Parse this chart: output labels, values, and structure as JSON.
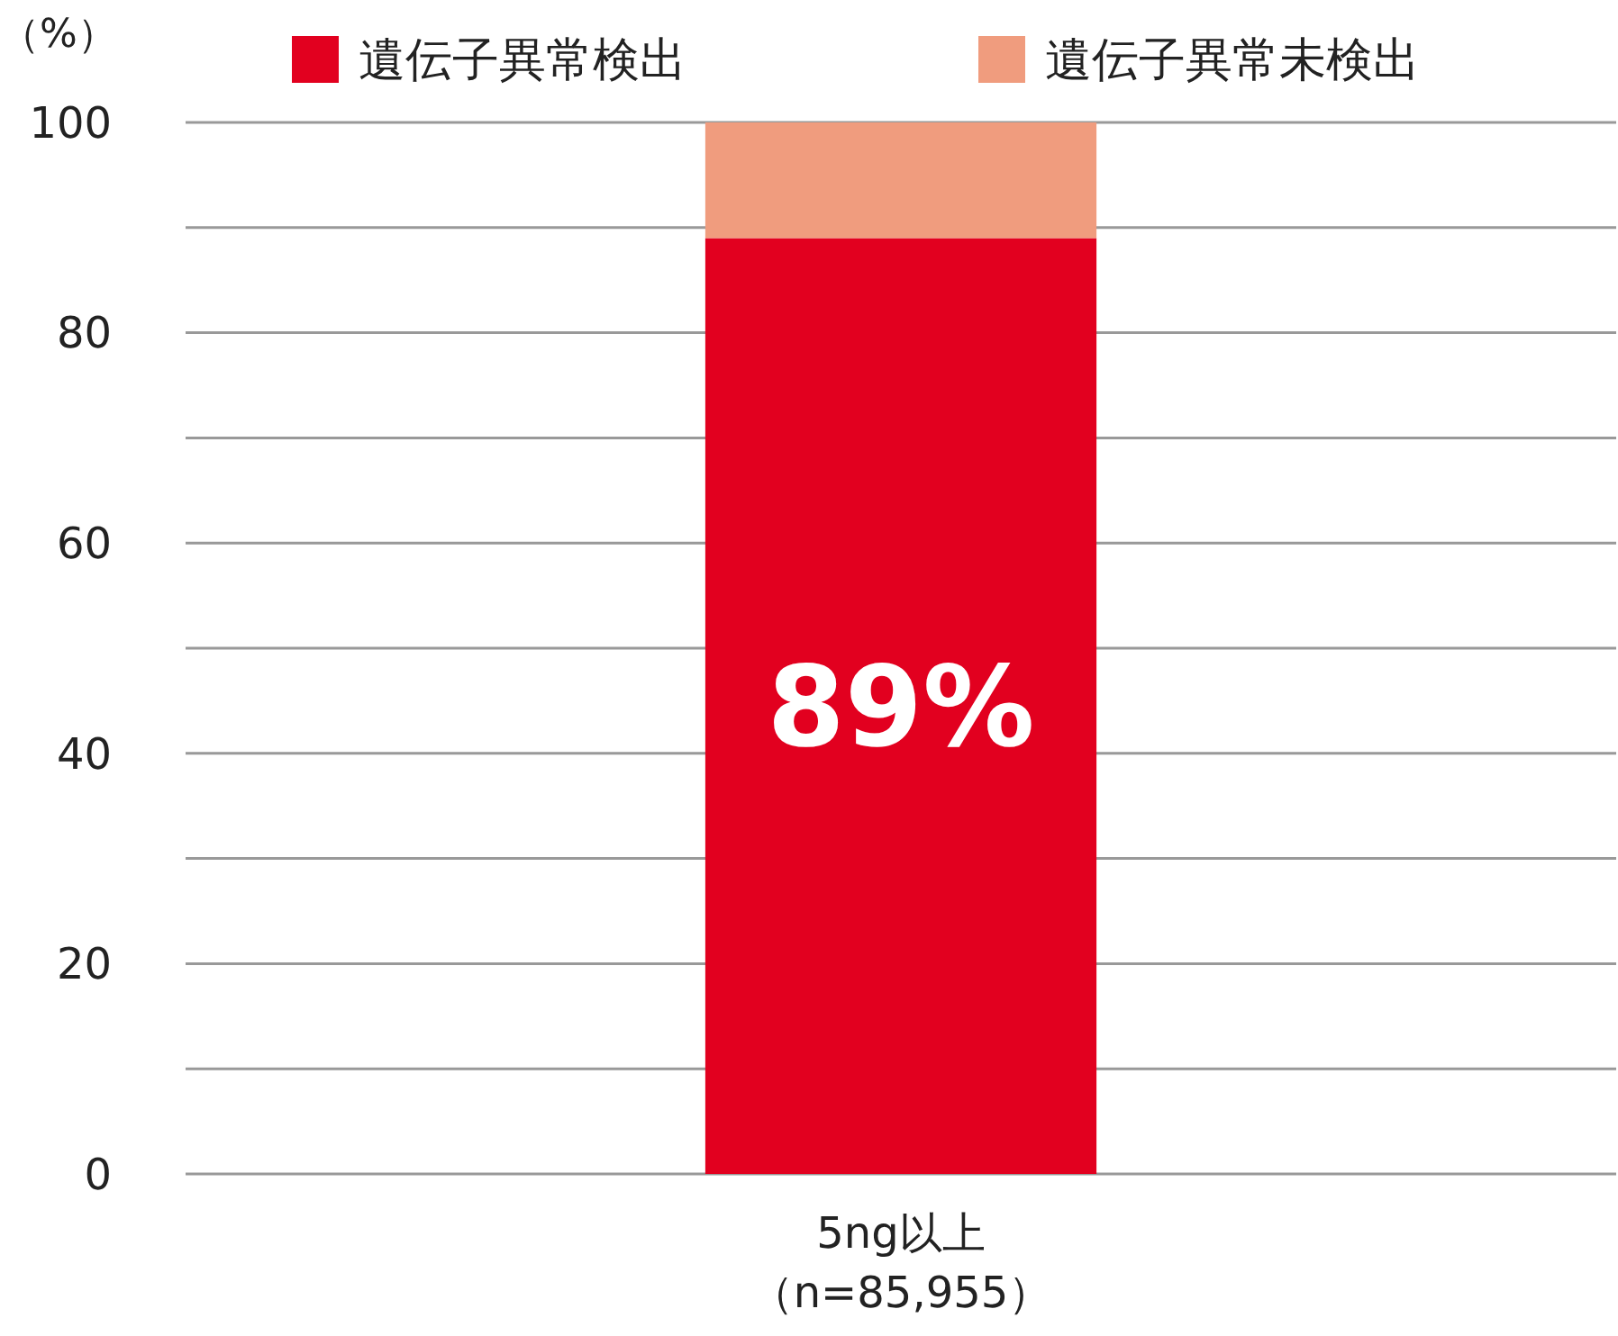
{
  "chart_data": {
    "type": "bar",
    "stacked": true,
    "ylabel": "（%）",
    "categories": [
      "5ng以上（n=85,955）"
    ],
    "series": [
      {
        "name": "遺伝子異常検出",
        "color": "#e2001f",
        "values": [
          89
        ],
        "value_labels": [
          "89%"
        ]
      },
      {
        "name": "遺伝子異常未検出",
        "color": "#f09c7e",
        "values": [
          11
        ]
      }
    ],
    "ylim": [
      0,
      100
    ],
    "yticks": [
      0,
      {
        "value": 10,
        "label": null
      },
      20,
      {
        "value": 30,
        "label": null
      },
      40,
      {
        "value": 50,
        "label": null
      },
      60,
      {
        "value": 70,
        "label": null
      },
      80,
      {
        "value": 90,
        "label": null
      },
      100
    ],
    "grid": true,
    "legend": "top"
  }
}
